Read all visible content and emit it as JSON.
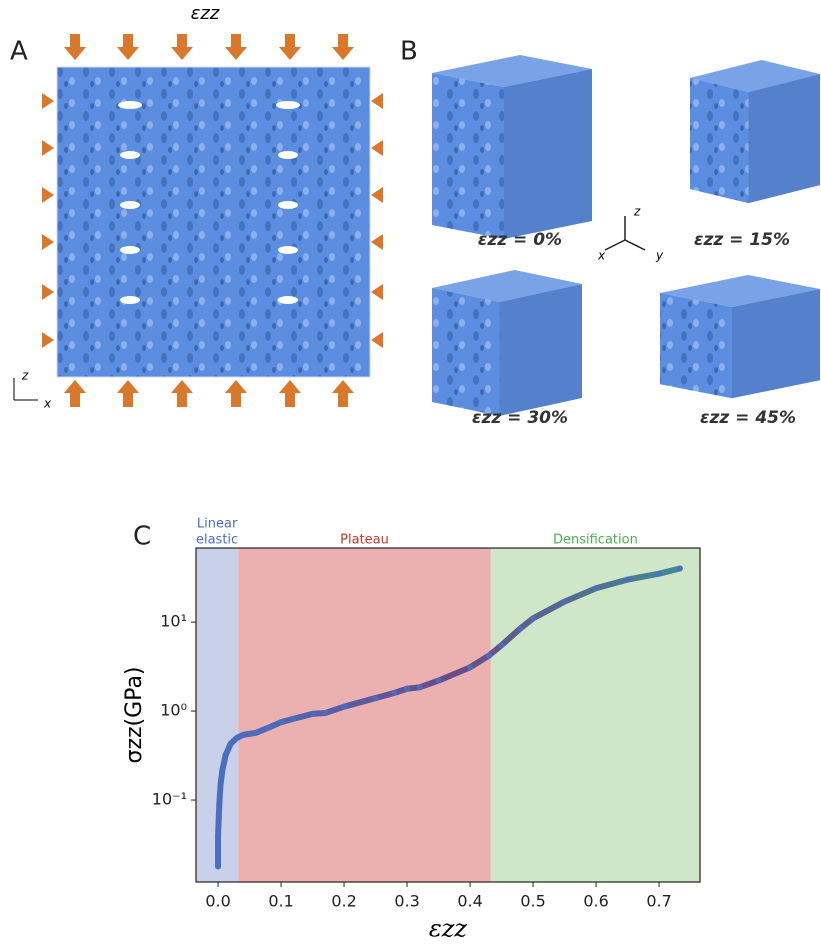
{
  "panels": {
    "A": {
      "label": "A",
      "load_label": "εzz",
      "axes": [
        "z",
        "x"
      ]
    },
    "B": {
      "label": "B",
      "cube_labels": [
        "εzz = 0%",
        "εzz = 15%",
        "εzz = 30%",
        "εzz = 45%"
      ],
      "axes": [
        "z",
        "x",
        "y"
      ]
    },
    "C": {
      "label": "C"
    }
  },
  "chart_data": {
    "type": "scatter",
    "xlabel": "εzz",
    "ylabel": "σzz(GPa)",
    "log_y": true,
    "xlim": [
      -0.035,
      0.765
    ],
    "ylim": [
      0.012,
      68
    ],
    "xticks": [
      {
        "value": 0,
        "label": "0.0"
      },
      0.1,
      0.2,
      0.3,
      0.4,
      0.5,
      0.6,
      0.7
    ],
    "yticks": [
      {
        "value": 0.1,
        "label": "10⁻¹"
      },
      {
        "value": 1,
        "label": "10⁰"
      },
      {
        "value": 10,
        "label": "10¹"
      }
    ],
    "regions": [
      {
        "label": [
          "Linear",
          "elastic"
        ],
        "start": -0.035,
        "end": 0.032,
        "color": "#c9d1ea",
        "label_color": "#4a6fc0"
      },
      {
        "label": [
          "Plateau"
        ],
        "start": 0.032,
        "end": 0.433,
        "color": "#ebb1b0",
        "label_color": "#c0392b"
      },
      {
        "label": [
          "Densification"
        ],
        "start": 0.433,
        "end": 0.765,
        "color": "#d0e6c9",
        "label_color": "#4caf50"
      }
    ],
    "series": [
      {
        "colors": [
          "#4a6fc0",
          "#6a4a8a",
          "#3f8a96"
        ],
        "x": [
          0,
          0,
          0.001,
          0.002,
          0.004,
          0.007,
          0.012,
          0.02,
          0.03,
          0.04,
          0.06,
          0.08,
          0.1,
          0.12,
          0.15,
          0.17,
          0.2,
          0.25,
          0.28,
          0.3,
          0.32,
          0.35,
          0.4,
          0.43,
          0.45,
          0.48,
          0.5,
          0.55,
          0.6,
          0.65,
          0.7,
          0.733
        ],
        "values": [
          0.018,
          0.04,
          0.06,
          0.09,
          0.15,
          0.22,
          0.32,
          0.43,
          0.5,
          0.54,
          0.57,
          0.65,
          0.75,
          0.82,
          0.93,
          0.95,
          1.12,
          1.4,
          1.6,
          1.78,
          1.85,
          2.2,
          3.1,
          4.2,
          5.5,
          8.5,
          11,
          17,
          24,
          30,
          35,
          40
        ]
      }
    ]
  }
}
